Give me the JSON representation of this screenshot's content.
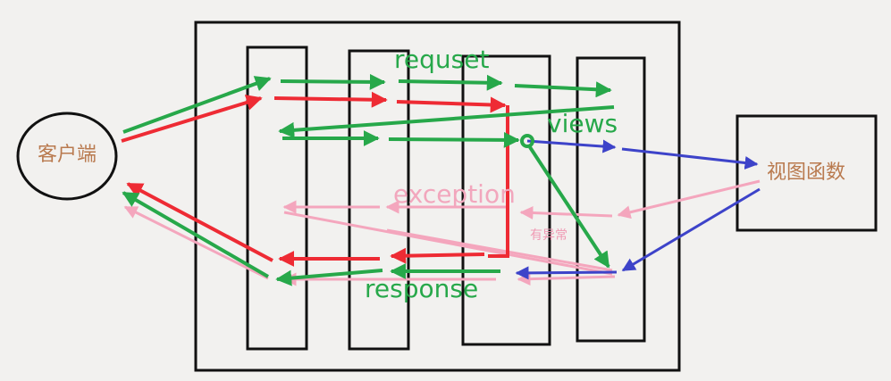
{
  "nodes": {
    "client": "客户端",
    "view_function": "视图函数"
  },
  "labels": {
    "request": "requset",
    "views": "views",
    "exception": "exception",
    "has_exception": "有异常",
    "response": "response"
  },
  "colors": {
    "request_flow": "#27a84a",
    "exception_flow": "#ee2b34",
    "view_call": "#3d43c9",
    "exception_response": "#f4a6bd",
    "node_text": "#b97a4f",
    "outline": "#111111"
  }
}
